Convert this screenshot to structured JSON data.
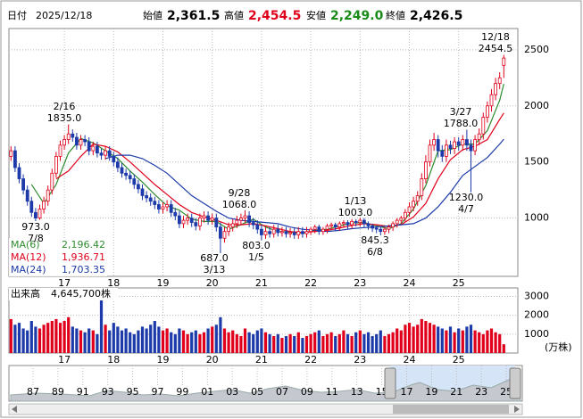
{
  "header": {
    "date_label": "日付",
    "date": "2025/12/18",
    "items": [
      {
        "label": "始値",
        "value": "2,361.5"
      },
      {
        "label": "高値",
        "value": "2,454.5"
      },
      {
        "label": "安値",
        "value": "2,249.0"
      },
      {
        "label": "終値",
        "value": "2,426.5"
      }
    ]
  },
  "chart_data": {
    "type": "candlestick",
    "categories": [
      null,
      null,
      null,
      null,
      null,
      null,
      null,
      null,
      null,
      null,
      null,
      null,
      null,
      "17",
      null,
      null,
      null,
      null,
      null,
      null,
      null,
      null,
      null,
      null,
      null,
      "18",
      null,
      null,
      null,
      null,
      null,
      null,
      null,
      null,
      null,
      null,
      null,
      "19",
      null,
      null,
      null,
      null,
      null,
      null,
      null,
      null,
      null,
      null,
      null,
      "20",
      null,
      null,
      null,
      null,
      null,
      null,
      null,
      null,
      null,
      null,
      null,
      "21",
      null,
      null,
      null,
      null,
      null,
      null,
      null,
      null,
      null,
      null,
      null,
      "22",
      null,
      null,
      null,
      null,
      null,
      null,
      null,
      null,
      null,
      null,
      null,
      "23",
      null,
      null,
      null,
      null,
      null,
      null,
      null,
      null,
      null,
      null,
      null,
      "24",
      null,
      null,
      null,
      null,
      null,
      null,
      null,
      null,
      null,
      null,
      null,
      "25",
      null,
      null,
      null,
      null,
      null,
      null,
      null,
      null,
      null,
      null,
      null
    ],
    "open": [
      1550,
      1600,
      1450,
      1350,
      1250,
      1150,
      1050,
      1000,
      1080,
      1150,
      1250,
      1400,
      1550,
      1650,
      1700,
      1750,
      1720,
      1650,
      1700,
      1680,
      1600,
      1640,
      1580,
      1560,
      1600,
      1550,
      1500,
      1450,
      1400,
      1380,
      1350,
      1300,
      1260,
      1200,
      1180,
      1150,
      1120,
      1080,
      1100,
      1120,
      1050,
      1020,
      950,
      980,
      1000,
      960,
      930,
      1000,
      1020,
      980,
      1000,
      920,
      820,
      880,
      920,
      950,
      980,
      1000,
      1020,
      960,
      940,
      900,
      850,
      880,
      860,
      900,
      870,
      880,
      860,
      870,
      850,
      880,
      860,
      880,
      900,
      920,
      880,
      900,
      930,
      940,
      920,
      950,
      960,
      940,
      970,
      960,
      980,
      950,
      930,
      910,
      900,
      880,
      900,
      920,
      950,
      980,
      1000,
      1050,
      1100,
      1150,
      1200,
      1350,
      1500,
      1650,
      1700,
      1600,
      1550,
      1650,
      1620,
      1680,
      1650,
      1700,
      1650,
      1600,
      1700,
      1750,
      1900,
      2000,
      2100,
      2200,
      2361.5
    ],
    "high": [
      1640,
      1640,
      1490,
      1390,
      1290,
      1190,
      1090,
      1120,
      1190,
      1290,
      1440,
      1590,
      1690,
      1740,
      1835,
      1790,
      1760,
      1740,
      1740,
      1720,
      1680,
      1680,
      1620,
      1640,
      1640,
      1590,
      1540,
      1490,
      1440,
      1420,
      1390,
      1340,
      1300,
      1240,
      1220,
      1190,
      1160,
      1140,
      1160,
      1160,
      1090,
      1060,
      1020,
      1040,
      1040,
      1000,
      1040,
      1060,
      1060,
      1040,
      1040,
      960,
      920,
      960,
      990,
      1020,
      1040,
      1068,
      1060,
      1000,
      980,
      940,
      920,
      920,
      940,
      940,
      920,
      920,
      910,
      910,
      920,
      920,
      920,
      920,
      940,
      940,
      920,
      950,
      960,
      960,
      970,
      980,
      980,
      990,
      990,
      1003,
      1000,
      970,
      950,
      930,
      920,
      920,
      940,
      970,
      1000,
      1020,
      1080,
      1140,
      1190,
      1240,
      1400,
      1560,
      1700,
      1760,
      1740,
      1650,
      1700,
      1690,
      1720,
      1720,
      1740,
      1788,
      1700,
      1740,
      1800,
      1940,
      2040,
      2150,
      2250,
      2300,
      2454.5
    ],
    "low": [
      1510,
      1410,
      1310,
      1210,
      1110,
      1010,
      973,
      985,
      1040,
      1110,
      1210,
      1360,
      1510,
      1610,
      1660,
      1680,
      1610,
      1610,
      1640,
      1560,
      1560,
      1540,
      1520,
      1520,
      1510,
      1460,
      1410,
      1360,
      1340,
      1310,
      1260,
      1220,
      1160,
      1140,
      1110,
      1080,
      1040,
      1040,
      1060,
      1010,
      980,
      910,
      910,
      940,
      920,
      890,
      890,
      960,
      940,
      940,
      880,
      687,
      780,
      840,
      880,
      910,
      940,
      960,
      920,
      900,
      860,
      803,
      815,
      825,
      825,
      835,
      835,
      825,
      825,
      815,
      815,
      825,
      825,
      850,
      865,
      850,
      850,
      865,
      895,
      885,
      885,
      915,
      905,
      905,
      925,
      925,
      915,
      895,
      875,
      865,
      845.3,
      850,
      865,
      885,
      915,
      945,
      965,
      1010,
      1060,
      1110,
      1160,
      1310,
      1460,
      1600,
      1540,
      1500,
      1500,
      1570,
      1570,
      1600,
      1600,
      1600,
      1230,
      1560,
      1650,
      1700,
      1850,
      1950,
      2050,
      2150,
      2249
    ],
    "close": [
      1600,
      1450,
      1350,
      1250,
      1150,
      1050,
      1000,
      1080,
      1150,
      1250,
      1400,
      1550,
      1650,
      1700,
      1750,
      1720,
      1650,
      1700,
      1680,
      1600,
      1640,
      1580,
      1560,
      1600,
      1550,
      1500,
      1450,
      1400,
      1380,
      1350,
      1300,
      1260,
      1200,
      1180,
      1150,
      1120,
      1080,
      1100,
      1120,
      1050,
      1020,
      950,
      980,
      1000,
      960,
      930,
      1000,
      1020,
      980,
      1000,
      920,
      820,
      880,
      920,
      950,
      980,
      1000,
      1020,
      960,
      940,
      900,
      850,
      880,
      860,
      900,
      870,
      880,
      860,
      870,
      850,
      880,
      860,
      880,
      900,
      920,
      880,
      900,
      930,
      940,
      920,
      950,
      960,
      940,
      970,
      960,
      980,
      950,
      930,
      910,
      900,
      880,
      900,
      920,
      950,
      980,
      1000,
      1050,
      1100,
      1150,
      1200,
      1350,
      1500,
      1650,
      1700,
      1600,
      1550,
      1650,
      1620,
      1680,
      1650,
      1700,
      1650,
      1600,
      1700,
      1750,
      1900,
      2000,
      2100,
      2200,
      2250,
      2426.5
    ],
    "up_color": "#e0001b",
    "down_color": "#1c3aa9",
    "ylim": [
      480,
      2690
    ],
    "yticks": [
      1000,
      1500,
      2000,
      2500
    ],
    "grid": true,
    "series": [
      {
        "name": "MA(6)",
        "color": "#2e8b2e",
        "x": [
          5,
          8,
          11,
          14,
          17,
          20,
          23,
          26,
          29,
          32,
          35,
          38,
          41,
          44,
          47,
          50,
          53,
          56,
          59,
          62,
          65,
          68,
          71,
          74,
          77,
          80,
          83,
          86,
          89,
          92,
          95,
          98,
          101,
          104,
          107,
          110,
          113,
          116,
          119,
          120
        ],
        "values": [
          1300,
          1130,
          1300,
          1580,
          1710,
          1670,
          1600,
          1530,
          1420,
          1320,
          1210,
          1110,
          1070,
          990,
          970,
          970,
          900,
          940,
          990,
          920,
          880,
          875,
          865,
          890,
          900,
          930,
          955,
          960,
          930,
          905,
          950,
          1080,
          1290,
          1600,
          1610,
          1660,
          1660,
          1780,
          2050,
          2196.42
        ],
        "latest": {
          "value": 2196.42,
          "label": "2,196.42"
        }
      },
      {
        "name": "MA(12)",
        "color": "#e0001b",
        "x": [
          11,
          14,
          17,
          20,
          23,
          26,
          29,
          32,
          35,
          38,
          41,
          44,
          47,
          50,
          53,
          56,
          59,
          62,
          65,
          68,
          71,
          74,
          77,
          80,
          83,
          86,
          89,
          92,
          95,
          98,
          101,
          104,
          107,
          110,
          113,
          116,
          119,
          120
        ],
        "values": [
          1350,
          1420,
          1550,
          1660,
          1640,
          1590,
          1500,
          1400,
          1300,
          1210,
          1120,
          1050,
          1010,
          980,
          940,
          940,
          950,
          930,
          905,
          880,
          870,
          880,
          890,
          910,
          935,
          950,
          940,
          925,
          940,
          1010,
          1130,
          1350,
          1520,
          1610,
          1640,
          1700,
          1880,
          1936.71
        ],
        "latest": {
          "value": 1936.71,
          "label": "1,936.71"
        }
      },
      {
        "name": "MA(24)",
        "color": "#1c3aa9",
        "x": [
          23,
          26,
          29,
          32,
          35,
          38,
          41,
          44,
          47,
          50,
          53,
          56,
          59,
          62,
          65,
          68,
          71,
          74,
          77,
          80,
          83,
          86,
          89,
          92,
          95,
          98,
          101,
          104,
          107,
          110,
          113,
          116,
          119,
          120
        ],
        "values": [
          1530,
          1560,
          1560,
          1530,
          1470,
          1400,
          1300,
          1200,
          1130,
          1060,
          1000,
          980,
          970,
          960,
          950,
          920,
          900,
          890,
          880,
          890,
          905,
          915,
          920,
          930,
          940,
          950,
          1000,
          1100,
          1230,
          1380,
          1460,
          1540,
          1660,
          1703.35
        ],
        "latest": {
          "value": 1703.35,
          "label": "1,703.35"
        }
      }
    ],
    "annotations": [
      {
        "date": "12/18",
        "price": "2454.5"
      },
      {
        "date": "2/16",
        "price": "1835.0"
      },
      {
        "date": "7/8",
        "price": "973.0"
      },
      {
        "date": "9/28",
        "price": "1068.0"
      },
      {
        "date": "3/13",
        "price": "687.0"
      },
      {
        "date": "1/5",
        "price": "803.0"
      },
      {
        "date": "1/13",
        "price": "1003.0"
      },
      {
        "date": "6/8",
        "price": "845.3"
      },
      {
        "date": "3/27",
        "price": "1788.0"
      },
      {
        "date": "4/7",
        "price": "1230.0"
      }
    ],
    "volume": {
      "title": "出来高",
      "latest_label": "4,645,700株",
      "unit": "(万株)",
      "ylim": [
        0,
        3450
      ],
      "yticks": [
        1000,
        2000,
        3000
      ],
      "values": [
        1800,
        1500,
        1600,
        1300,
        1200,
        1700,
        1400,
        1300,
        1500,
        1600,
        1700,
        1800,
        1600,
        1700,
        1900,
        1400,
        1300,
        1200,
        1100,
        1300,
        1200,
        1000,
        3300,
        1500,
        1200,
        1600,
        1400,
        1200,
        1300,
        1100,
        1000,
        1200,
        1400,
        1300,
        1500,
        1700,
        1400,
        1200,
        1300,
        1100,
        1000,
        1300,
        1200,
        1000,
        1100,
        1200,
        1000,
        1100,
        1300,
        1400,
        1500,
        1900,
        1300,
        1100,
        1200,
        1000,
        900,
        1300,
        1100,
        1000,
        1200,
        1300,
        1100,
        1000,
        900,
        1000,
        800,
        900,
        1000,
        900,
        1100,
        800,
        900,
        1000,
        1100,
        1200,
        900,
        1000,
        1100,
        900,
        1000,
        1200,
        1000,
        900,
        1100,
        1200,
        1000,
        1100,
        900,
        1000,
        1200,
        900,
        1000,
        1100,
        1300,
        1200,
        1500,
        1600,
        1400,
        1500,
        1800,
        1700,
        1600,
        1500,
        1400,
        1300,
        1200,
        1400,
        1100,
        1300,
        1200,
        1400,
        1500,
        1200,
        1100,
        1000,
        1200,
        1300,
        1100,
        1000,
        464.57
      ]
    }
  },
  "navigator": {
    "labels": [
      "87",
      "89",
      "91",
      "93",
      "95",
      "97",
      "99",
      "01",
      "03",
      "05",
      "07",
      "09",
      "11",
      "13",
      "15",
      "17",
      "19",
      "21",
      "23",
      "25"
    ]
  }
}
